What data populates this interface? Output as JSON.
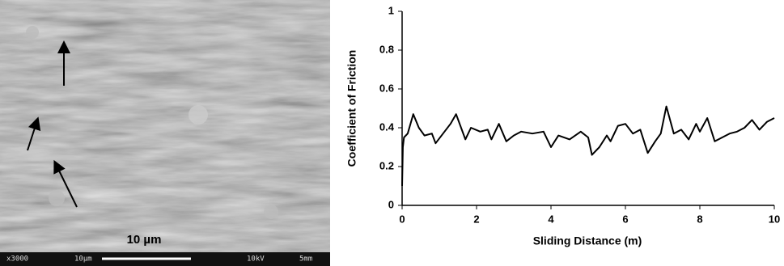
{
  "micrograph": {
    "scale_label": "10 µm",
    "info": [
      "x3000",
      "10µm",
      "10kV",
      "5mm"
    ]
  },
  "chart_data": {
    "type": "line",
    "xlabel": "Sliding Distance (m)",
    "ylabel": "Coefficient of Friction",
    "xlim": [
      0,
      10
    ],
    "ylim": [
      0,
      1
    ],
    "xticks": [
      0,
      2,
      4,
      6,
      8,
      10
    ],
    "yticks": [
      0,
      0.2,
      0.4,
      0.6,
      0.8,
      1
    ],
    "color": "#000000",
    "x": [
      0,
      0.02,
      0.05,
      0.15,
      0.3,
      0.45,
      0.6,
      0.8,
      0.9,
      1.1,
      1.3,
      1.45,
      1.7,
      1.85,
      2.1,
      2.3,
      2.4,
      2.6,
      2.8,
      3.0,
      3.2,
      3.5,
      3.8,
      4.0,
      4.2,
      4.5,
      4.8,
      5.0,
      5.1,
      5.3,
      5.5,
      5.6,
      5.8,
      6.0,
      6.2,
      6.4,
      6.6,
      6.8,
      6.95,
      7.1,
      7.3,
      7.5,
      7.7,
      7.9,
      8.0,
      8.2,
      8.4,
      8.6,
      8.8,
      9.0,
      9.2,
      9.4,
      9.6,
      9.8,
      10
    ],
    "values": [
      0.1,
      0.3,
      0.35,
      0.37,
      0.47,
      0.4,
      0.36,
      0.37,
      0.32,
      0.37,
      0.42,
      0.47,
      0.34,
      0.4,
      0.38,
      0.39,
      0.34,
      0.42,
      0.33,
      0.36,
      0.38,
      0.37,
      0.38,
      0.3,
      0.36,
      0.34,
      0.38,
      0.35,
      0.26,
      0.3,
      0.36,
      0.33,
      0.41,
      0.42,
      0.37,
      0.39,
      0.27,
      0.33,
      0.37,
      0.51,
      0.37,
      0.39,
      0.34,
      0.42,
      0.38,
      0.45,
      0.33,
      0.35,
      0.37,
      0.38,
      0.4,
      0.44,
      0.39,
      0.43,
      0.45
    ]
  }
}
